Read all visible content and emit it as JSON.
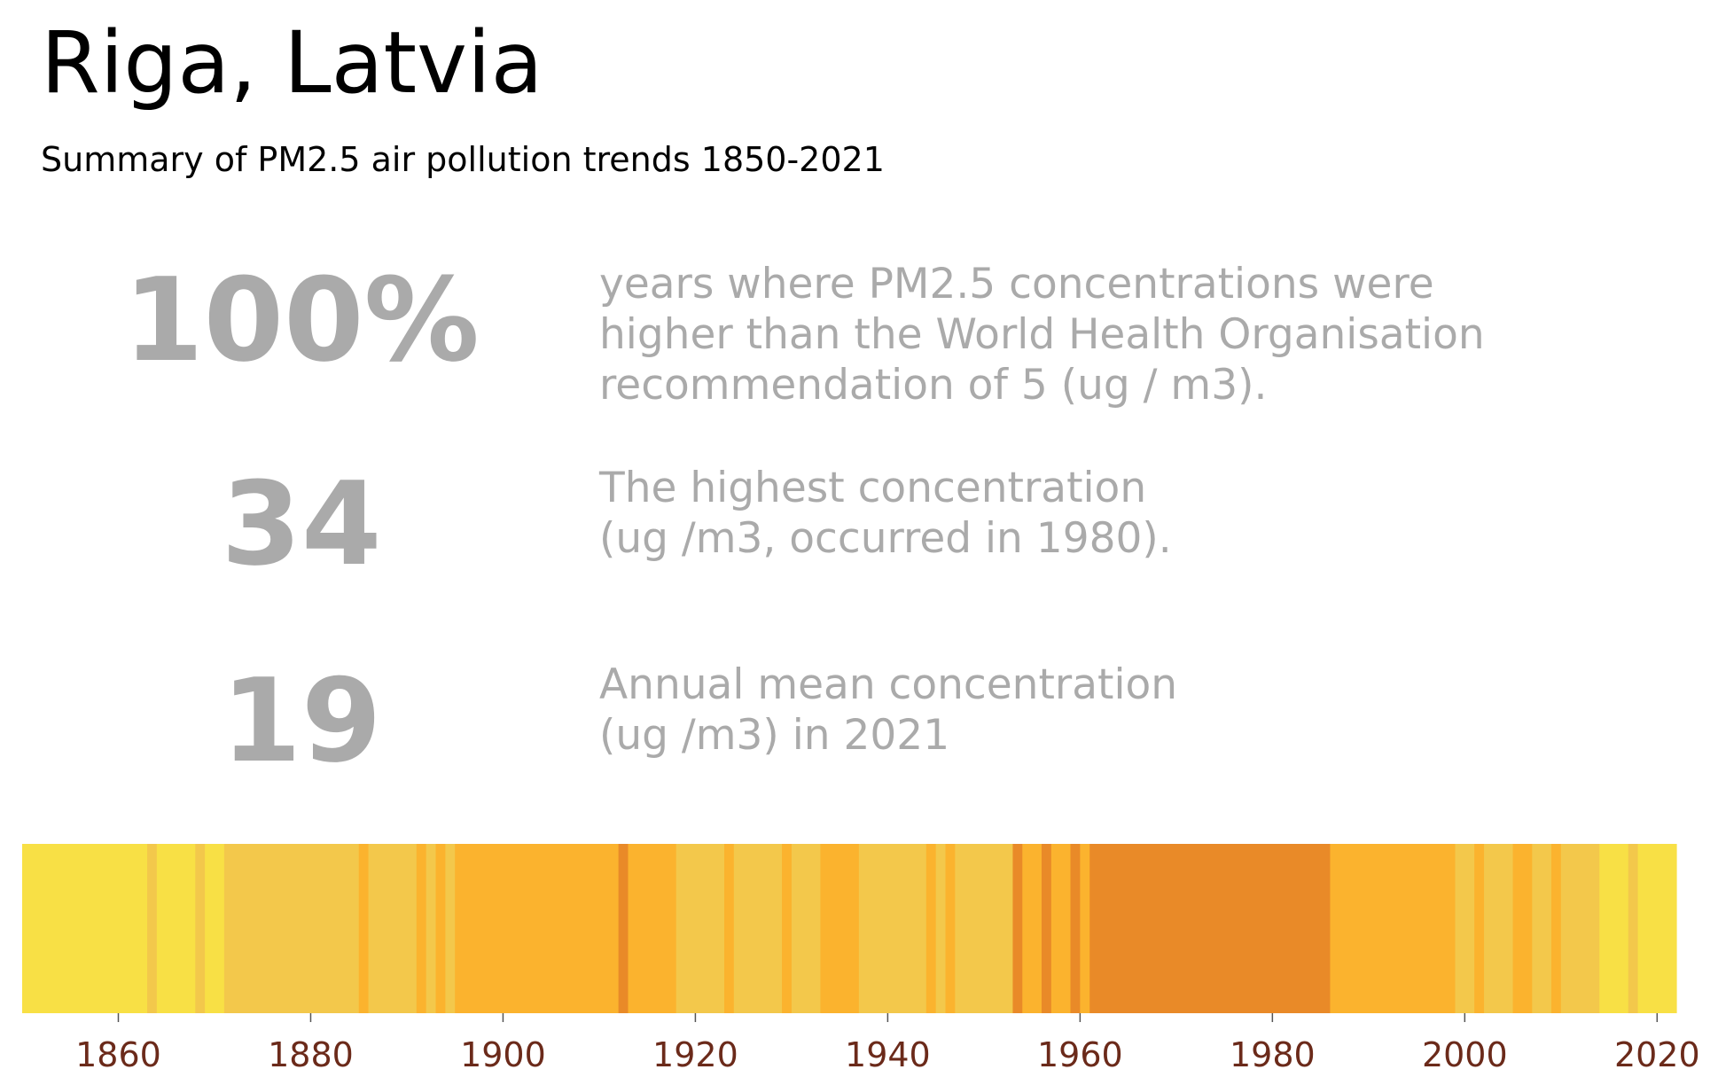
{
  "header": {
    "title": "Riga, Latvia",
    "subtitle": "Summary of PM2.5 air pollution trends 1850-2021"
  },
  "stats": [
    {
      "value": "100%",
      "lines": [
        "years where PM2.5 concentrations were",
        "higher than the World Health Organisation",
        "recommendation of 5 (ug / m3)."
      ]
    },
    {
      "value": "34",
      "lines": [
        "The highest concentration",
        "(ug /m3, occurred in 1980)."
      ]
    },
    {
      "value": "19",
      "lines": [
        "Annual mean concentration",
        "(ug /m3) in 2021"
      ]
    }
  ],
  "colors": {
    "text_grey": "#aaaaaa",
    "tick_label": "#6b2a1a",
    "level_1": "#f8e045",
    "level_2": "#f3c84b",
    "level_3": "#fbb32e",
    "level_4": "#e98a28"
  },
  "chart_data": {
    "type": "heatmap",
    "x_range": [
      1850,
      2022
    ],
    "xticks": [
      1860,
      1880,
      1900,
      1920,
      1940,
      1960,
      1980,
      2000,
      2020
    ],
    "grid": false,
    "legend": "none",
    "level_colors": [
      "#f8e045",
      "#f3c84b",
      "#fbb32e",
      "#e98a28"
    ],
    "bands": [
      {
        "start": 1850,
        "end": 1863,
        "level": 1
      },
      {
        "start": 1863,
        "end": 1864,
        "level": 2
      },
      {
        "start": 1864,
        "end": 1868,
        "level": 1
      },
      {
        "start": 1868,
        "end": 1869,
        "level": 2
      },
      {
        "start": 1869,
        "end": 1871,
        "level": 1
      },
      {
        "start": 1871,
        "end": 1885,
        "level": 2
      },
      {
        "start": 1885,
        "end": 1886,
        "level": 3
      },
      {
        "start": 1886,
        "end": 1891,
        "level": 2
      },
      {
        "start": 1891,
        "end": 1892,
        "level": 3
      },
      {
        "start": 1892,
        "end": 1893,
        "level": 2
      },
      {
        "start": 1893,
        "end": 1894,
        "level": 3
      },
      {
        "start": 1894,
        "end": 1895,
        "level": 2
      },
      {
        "start": 1895,
        "end": 1912,
        "level": 3
      },
      {
        "start": 1912,
        "end": 1913,
        "level": 4
      },
      {
        "start": 1913,
        "end": 1918,
        "level": 3
      },
      {
        "start": 1918,
        "end": 1923,
        "level": 2
      },
      {
        "start": 1923,
        "end": 1924,
        "level": 3
      },
      {
        "start": 1924,
        "end": 1929,
        "level": 2
      },
      {
        "start": 1929,
        "end": 1930,
        "level": 3
      },
      {
        "start": 1930,
        "end": 1933,
        "level": 2
      },
      {
        "start": 1933,
        "end": 1937,
        "level": 3
      },
      {
        "start": 1937,
        "end": 1944,
        "level": 2
      },
      {
        "start": 1944,
        "end": 1945,
        "level": 3
      },
      {
        "start": 1945,
        "end": 1946,
        "level": 2
      },
      {
        "start": 1946,
        "end": 1947,
        "level": 3
      },
      {
        "start": 1947,
        "end": 1953,
        "level": 2
      },
      {
        "start": 1953,
        "end": 1954,
        "level": 4
      },
      {
        "start": 1954,
        "end": 1956,
        "level": 3
      },
      {
        "start": 1956,
        "end": 1957,
        "level": 4
      },
      {
        "start": 1957,
        "end": 1959,
        "level": 3
      },
      {
        "start": 1959,
        "end": 1960,
        "level": 4
      },
      {
        "start": 1960,
        "end": 1961,
        "level": 3
      },
      {
        "start": 1961,
        "end": 1986,
        "level": 4
      },
      {
        "start": 1986,
        "end": 1999,
        "level": 3
      },
      {
        "start": 1999,
        "end": 2001,
        "level": 2
      },
      {
        "start": 2001,
        "end": 2002,
        "level": 3
      },
      {
        "start": 2002,
        "end": 2005,
        "level": 2
      },
      {
        "start": 2005,
        "end": 2007,
        "level": 3
      },
      {
        "start": 2007,
        "end": 2009,
        "level": 2
      },
      {
        "start": 2009,
        "end": 2010,
        "level": 3
      },
      {
        "start": 2010,
        "end": 2014,
        "level": 2
      },
      {
        "start": 2014,
        "end": 2017,
        "level": 1
      },
      {
        "start": 2017,
        "end": 2018,
        "level": 2
      },
      {
        "start": 2018,
        "end": 2022,
        "level": 1
      }
    ]
  }
}
